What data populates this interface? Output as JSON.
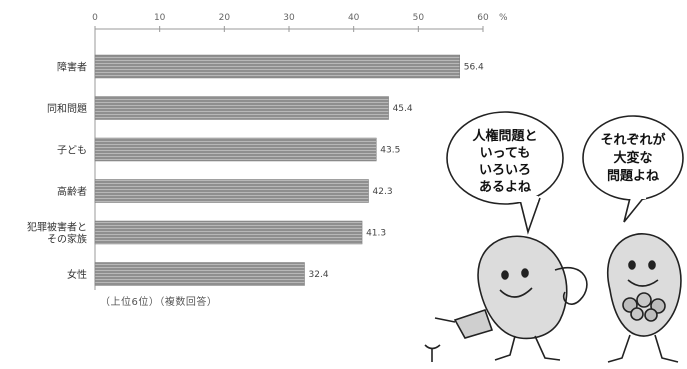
{
  "chart_data": {
    "type": "bar",
    "orientation": "horizontal",
    "categories": [
      "障害者",
      "同和問題",
      "子ども",
      "高齢者",
      "犯罪被害者とその家族",
      "女性"
    ],
    "category_lines": [
      [
        "障害者"
      ],
      [
        "同和問題"
      ],
      [
        "子ども"
      ],
      [
        "高齢者"
      ],
      [
        "犯罪被害者と",
        "その家族"
      ],
      [
        "女性"
      ]
    ],
    "values": [
      56.4,
      45.4,
      43.5,
      42.3,
      41.3,
      32.4
    ],
    "value_labels": [
      "56.4",
      "45.4",
      "43.5",
      "42.3",
      "41.3",
      "32.4"
    ],
    "xlim": [
      0,
      60
    ],
    "xticks": [
      "0",
      "10",
      "20",
      "30",
      "40",
      "50",
      "60"
    ],
    "unit": "%",
    "footnote": "（上位6位）（複数回答）",
    "colors": {
      "bar": "#8f8f8f",
      "bar_stripe": "#b5b5b5",
      "axis": "#999999"
    }
  },
  "speech_bubbles": [
    {
      "lines": [
        "人権問題と",
        "いっても",
        "いろいろ",
        "あるよね"
      ]
    },
    {
      "lines": [
        "それぞれが",
        "大変な",
        "問題よね"
      ]
    }
  ]
}
